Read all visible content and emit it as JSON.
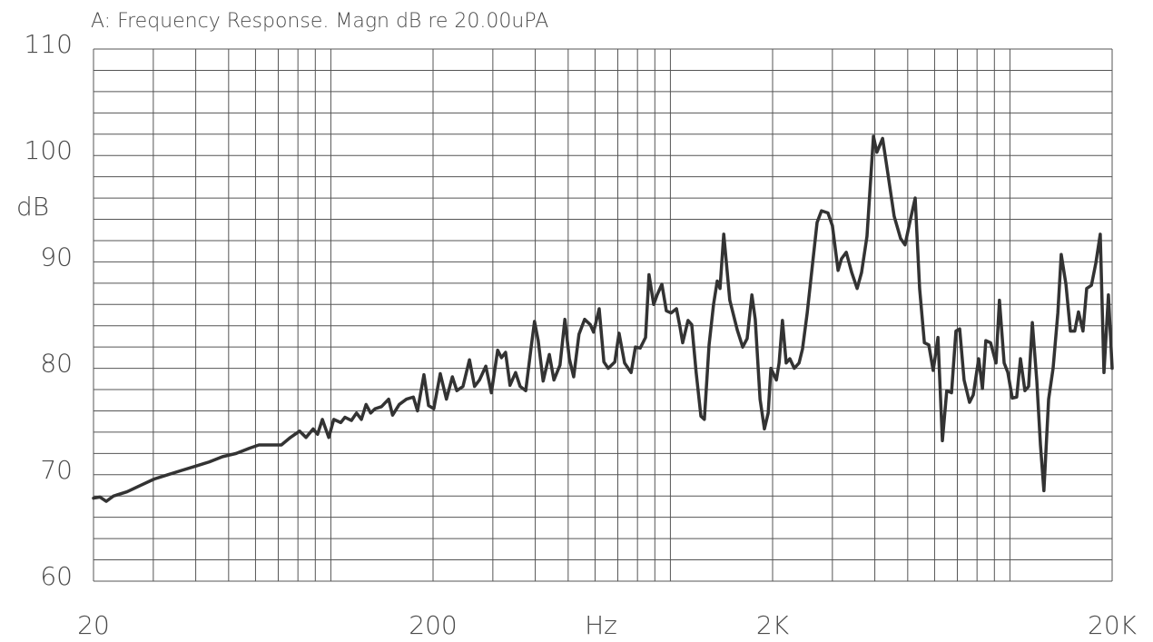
{
  "chart_data": {
    "type": "line",
    "title": "A: Frequency Response. Magn dB re 20.00uPA",
    "x_label": "Hz",
    "y_label": "dB",
    "xscale": "log",
    "color": "#333333",
    "grid": true,
    "xlim": [
      20,
      20000
    ],
    "ylim": [
      60,
      110
    ],
    "xticks": [
      20,
      200,
      {
        "value": 2000,
        "label": "2K"
      },
      {
        "value": 20000,
        "label": "20K"
      }
    ],
    "yticks": [
      60,
      70,
      80,
      90,
      100,
      110
    ],
    "xgrid": [
      20,
      30,
      40,
      50,
      60,
      70,
      80,
      90,
      100,
      200,
      300,
      400,
      500,
      600,
      700,
      800,
      900,
      1000,
      2000,
      3000,
      4000,
      5000,
      6000,
      7000,
      8000,
      9000,
      10000,
      20000
    ],
    "ygrid": [
      60,
      62,
      64,
      66,
      68,
      70,
      72,
      74,
      76,
      78,
      80,
      82,
      84,
      86,
      88,
      90,
      92,
      94,
      96,
      98,
      100,
      102,
      104,
      106,
      108,
      110
    ],
    "x": [
      20,
      20.9,
      21.8,
      22.9,
      25.1,
      27.5,
      30.2,
      33.1,
      36.3,
      39.9,
      43.8,
      48.0,
      52.6,
      57.7,
      61.4,
      65.2,
      71.5,
      76.0,
      80.9,
      84.5,
      88.7,
      91.4,
      94.4,
      98.6,
      102,
      107,
      110,
      115,
      119,
      123,
      127,
      131,
      135,
      141,
      148,
      152,
      159,
      167,
      175,
      180,
      188,
      194,
      201,
      210,
      219,
      228,
      235,
      245,
      256,
      265,
      274,
      286,
      297,
      310,
      318,
      327,
      337,
      350,
      361,
      375,
      389,
      398,
      408,
      422,
      440,
      454,
      473,
      489,
      504,
      519,
      538,
      559,
      581,
      594,
      617,
      637,
      656,
      686,
      706,
      733,
      766,
      789,
      815,
      845,
      865,
      893,
      914,
      944,
      973,
      1005,
      1042,
      1067,
      1087,
      1127,
      1156,
      1191,
      1230,
      1259,
      1300,
      1340,
      1374,
      1400,
      1436,
      1462,
      1496,
      1574,
      1633,
      1683,
      1738,
      1778,
      1837,
      1892,
      1941,
      1977,
      2052,
      2090,
      2138,
      2193,
      2248,
      2317,
      2393,
      2449,
      2529,
      2624,
      2704,
      2786,
      2911,
      3000,
      3118,
      3192,
      3296,
      3420,
      3548,
      3656,
      3793,
      3963,
      4056,
      4217,
      4375,
      4560,
      4764,
      4910,
      5070,
      5260,
      5420,
      5598,
      5768,
      5943,
      6138,
      6325,
      6516,
      6730,
      6934,
      7112,
      7328,
      7603,
      7798,
      8091,
      8299,
      8492,
      8770,
      9100,
      9313,
      9616,
      9860,
      10160,
      10470,
      10740,
      11070,
      11350,
      11640,
      12000,
      12300,
      12590,
      13000,
      13400,
      13840,
      14160,
      14620,
      15070,
      15520,
      15920,
      16410,
      16830,
      17380,
      17910,
      18450,
      18920,
      19500,
      20000
    ],
    "values": [
      67.8,
      67.9,
      67.5,
      68.0,
      68.4,
      69.0,
      69.6,
      70.0,
      70.4,
      70.8,
      71.2,
      71.7,
      72.0,
      72.5,
      72.8,
      72.8,
      72.8,
      73.5,
      74.1,
      73.5,
      74.3,
      73.8,
      75.2,
      73.5,
      75.2,
      74.9,
      75.4,
      75.1,
      75.8,
      75.2,
      76.6,
      75.8,
      76.2,
      76.4,
      77.1,
      75.6,
      76.6,
      77.1,
      77.3,
      76.0,
      79.4,
      76.5,
      76.2,
      79.5,
      77.1,
      79.2,
      77.9,
      78.3,
      80.8,
      78.3,
      78.9,
      80.2,
      77.7,
      81.7,
      81.0,
      81.5,
      78.4,
      79.6,
      78.3,
      77.9,
      82.0,
      84.4,
      82.6,
      78.8,
      81.3,
      78.9,
      80.3,
      84.6,
      80.9,
      79.2,
      83.2,
      84.6,
      84.1,
      83.4,
      85.6,
      80.6,
      80.0,
      80.6,
      83.3,
      80.5,
      79.6,
      82.0,
      81.9,
      82.9,
      88.8,
      86.0,
      86.9,
      87.9,
      85.4,
      85.2,
      85.6,
      83.9,
      82.4,
      84.5,
      84.1,
      79.6,
      75.5,
      75.2,
      82.2,
      86.0,
      88.2,
      87.5,
      92.6,
      89.9,
      86.4,
      83.6,
      82.0,
      82.8,
      86.9,
      84.6,
      77.1,
      74.3,
      75.8,
      80.0,
      78.9,
      80.5,
      84.5,
      80.5,
      80.9,
      80.0,
      80.5,
      81.8,
      85.2,
      89.9,
      93.7,
      94.8,
      94.6,
      93.4,
      89.2,
      90.3,
      90.9,
      89.0,
      87.5,
      89.0,
      92.4,
      101.8,
      100.3,
      101.6,
      98.2,
      94.3,
      92.2,
      91.6,
      93.7,
      96.0,
      87.5,
      82.4,
      82.2,
      79.8,
      82.9,
      73.2,
      77.9,
      77.7,
      83.5,
      83.7,
      78.9,
      76.8,
      77.5,
      80.9,
      78.1,
      82.6,
      82.4,
      80.5,
      86.4,
      80.5,
      79.6,
      77.2,
      77.3,
      80.9,
      77.9,
      78.3,
      84.3,
      78.8,
      72.8,
      68.5,
      77.1,
      80.0,
      85.2,
      90.7,
      87.9,
      83.5,
      83.5,
      85.3,
      83.5,
      87.5,
      87.8,
      89.9,
      92.6,
      79.6,
      86.9,
      80.0
    ]
  }
}
